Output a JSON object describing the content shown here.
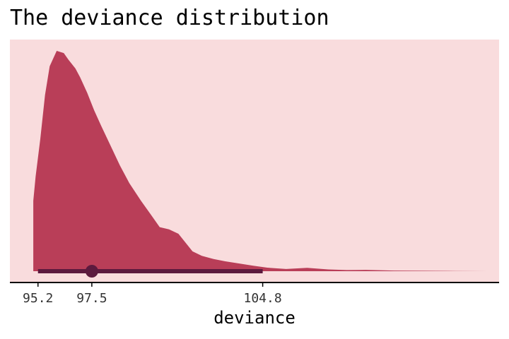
{
  "chart_data": {
    "type": "area",
    "title": "The deviance distribution",
    "xlabel": "deviance",
    "ylabel": "",
    "xlim": [
      94.0,
      114.9
    ],
    "x_ticks": [
      95.2,
      97.5,
      104.8
    ],
    "x_tick_labels": [
      "95.2",
      "97.5",
      "104.8"
    ],
    "density": {
      "x": [
        95.0,
        95.1,
        95.3,
        95.5,
        95.7,
        96.0,
        96.3,
        96.5,
        96.8,
        97.0,
        97.3,
        97.6,
        97.9,
        98.3,
        98.7,
        99.1,
        99.6,
        100.0,
        100.4,
        100.8,
        101.2,
        101.5,
        101.8,
        102.2,
        102.7,
        103.2,
        103.8,
        104.4,
        105.0,
        105.8,
        106.7,
        107.6,
        108.4,
        109.2,
        110.4,
        111.7,
        113.0,
        114.4
      ],
      "y": [
        0.32,
        0.43,
        0.6,
        0.8,
        0.93,
        1.0,
        0.99,
        0.96,
        0.92,
        0.88,
        0.81,
        0.73,
        0.66,
        0.57,
        0.48,
        0.4,
        0.32,
        0.26,
        0.2,
        0.19,
        0.17,
        0.13,
        0.09,
        0.07,
        0.055,
        0.045,
        0.035,
        0.025,
        0.016,
        0.01,
        0.015,
        0.008,
        0.005,
        0.006,
        0.003,
        0.002,
        0.001,
        0.0
      ]
    },
    "point_interval": {
      "point": 97.5,
      "lower": 95.2,
      "upper": 104.8
    },
    "colors": {
      "panel_background": "#f9dcdd",
      "density_fill": "#b93e58",
      "interval": "#5c1a3e",
      "axis": "#000000"
    },
    "grid": false,
    "legend": "none"
  }
}
